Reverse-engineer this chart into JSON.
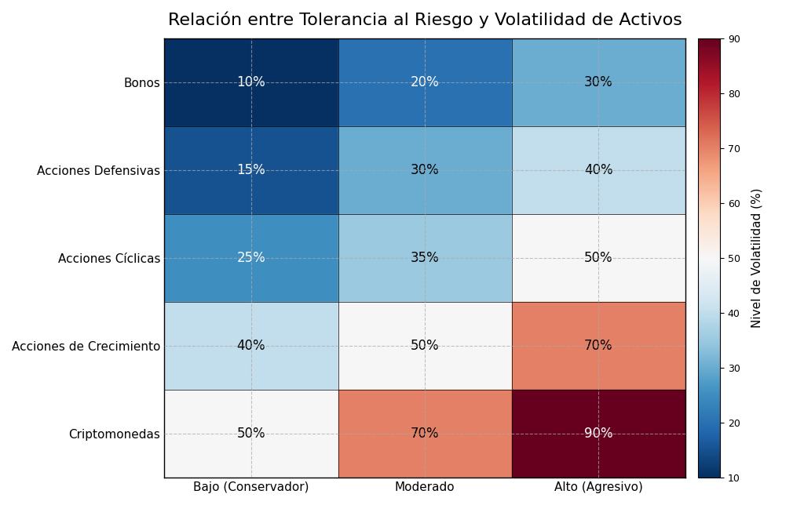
{
  "title": "Relación entre Tolerancia al Riesgo y Volatilidad de Activos",
  "x_labels": [
    "Bajo (Conservador)",
    "Moderado",
    "Alto (Agresivo)"
  ],
  "y_labels": [
    "Bonos",
    "Acciones Defensivas",
    "Acciones Cíclicas",
    "Acciones de Crecimiento",
    "Criptomonedas"
  ],
  "values": [
    [
      10,
      20,
      30
    ],
    [
      15,
      30,
      40
    ],
    [
      25,
      35,
      50
    ],
    [
      40,
      50,
      70
    ],
    [
      50,
      70,
      90
    ]
  ],
  "vmin": 10,
  "vmax": 90,
  "colorbar_label": "Nivel de Volatilidad (%)",
  "colorbar_ticks": [
    10,
    20,
    30,
    40,
    50,
    60,
    70,
    80,
    90
  ],
  "grid_color": "#aaaaaa",
  "text_color_dark": "#000000",
  "text_color_light": "#ffffff",
  "title_fontsize": 16,
  "label_fontsize": 11,
  "annot_fontsize": 12,
  "background_color": "#ffffff",
  "colormap": "RdBu_r"
}
